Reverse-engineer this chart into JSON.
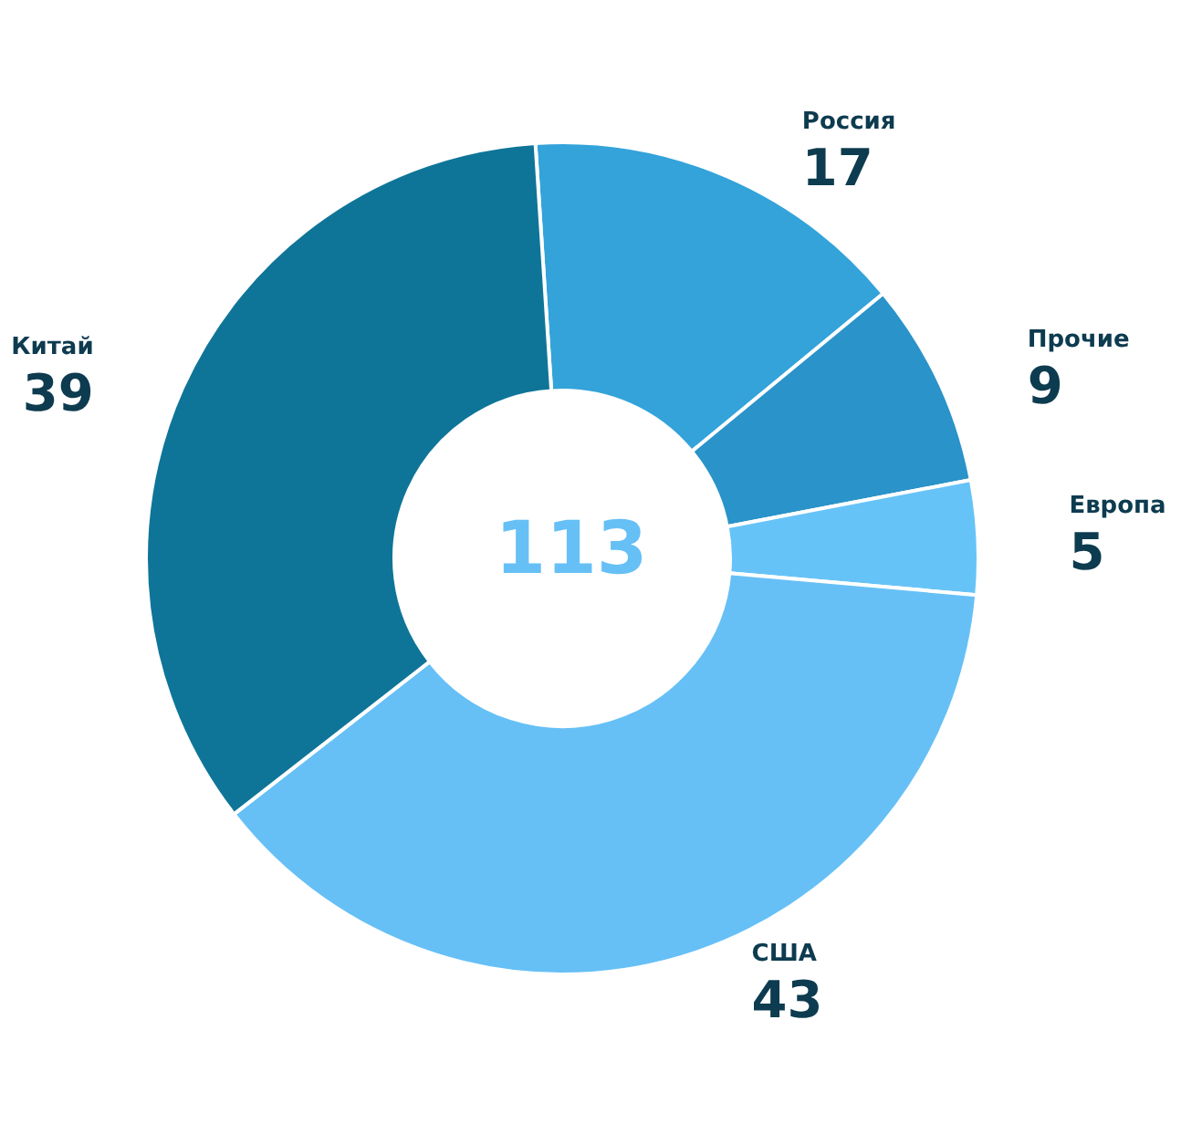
{
  "chart_data": {
    "type": "donut",
    "categories": [
      "Россия",
      "Прочие",
      "Европа",
      "США",
      "Китай"
    ],
    "values": [
      17,
      9,
      5,
      43,
      39
    ],
    "colors": [
      "#33a3da",
      "#2a93c9",
      "#66c3f7",
      "#66c0f6",
      "#0e7598"
    ],
    "data_labels": true,
    "legend": false,
    "annotations": [
      "113"
    ]
  }
}
